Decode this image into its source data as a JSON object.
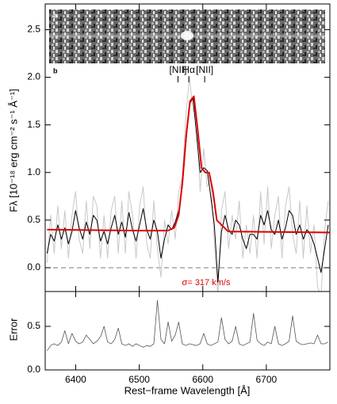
{
  "chart_data": [
    {
      "type": "line",
      "panel_label": "b",
      "image_label": "a",
      "ylabel": "Fλ [10⁻¹⁸ erg cm⁻² s⁻¹ Å⁻¹]",
      "xlim": [
        6352,
        6800
      ],
      "ylim": [
        -0.25,
        2.77
      ],
      "xticks": [
        6400,
        6500,
        6600,
        6700
      ],
      "yticks": [
        {
          "value": 0,
          "label": "0.0"
        },
        {
          "value": 0.5,
          "label": "0.5"
        },
        {
          "value": 1,
          "label": "1.0"
        },
        {
          "value": 1.5,
          "label": "1.5"
        },
        {
          "value": 2,
          "label": "2.0"
        },
        {
          "value": 2.5,
          "label": "2.5"
        }
      ],
      "x": [
        6355,
        6360.6,
        6366.2,
        6371.8,
        6377.4,
        6383,
        6388.6,
        6394.2,
        6399.8,
        6405.4,
        6411,
        6416.6,
        6422.2,
        6427.8,
        6433.4,
        6439,
        6444.6,
        6450.2,
        6455.8,
        6461.4,
        6467,
        6472.6,
        6478.2,
        6483.8,
        6489.4,
        6495,
        6500.6,
        6506.2,
        6511.8,
        6517.4,
        6523,
        6528.6,
        6534.2,
        6539.8,
        6545.4,
        6551,
        6556.6,
        6562.2,
        6567.8,
        6573.4,
        6579,
        6584.6,
        6590.2,
        6595.8,
        6601.4,
        6607,
        6612.6,
        6618.2,
        6623.8,
        6629.4,
        6635,
        6640.6,
        6646.2,
        6651.8,
        6657.4,
        6663,
        6668.6,
        6674.2,
        6679.8,
        6685.4,
        6691,
        6696.6,
        6702.2,
        6707.8,
        6713.4,
        6719,
        6724.6,
        6730.2,
        6735.8,
        6741.4,
        6747,
        6752.6,
        6758.2,
        6763.8,
        6769.4,
        6775,
        6780.6,
        6786.2,
        6791.8,
        6797.4
      ],
      "series": [
        {
          "color": "#c8c8c8",
          "values": [
            0.05,
            0.55,
            0.15,
            0.65,
            0.2,
            0.6,
            0.1,
            0.55,
            0.8,
            0.3,
            0.15,
            0.7,
            0.2,
            0.75,
            0.65,
            0.1,
            0.55,
            0.1,
            0.6,
            0.75,
            0.15,
            0.7,
            0.15,
            0.8,
            0.55,
            0.1,
            0.65,
            0.85,
            0.25,
            0.1,
            0.7,
            0.2,
            -0.1,
            0.5,
            0.25,
            0.6,
            0.3,
            0.8,
            0.95,
            1.6,
            2.0,
            1.65,
            1.6,
            0.8,
            1.25,
            0.85,
            0.95,
            0.25,
            -0.3,
            0.6,
            0.8,
            0.2,
            0.55,
            0.3,
            0.7,
            0.1,
            0.45,
            0.15,
            0.55,
            0.1,
            0.8,
            0.25,
            0.85,
            0.2,
            0.55,
            0.75,
            0.1,
            0.65,
            0.85,
            0.35,
            0.15,
            0.7,
            0.1,
            0.65,
            0.15,
            0.45,
            -0.2,
            -0.3,
            0.4,
            0.7
          ]
        },
        {
          "color": "#000000",
          "values": [
            0.15,
            0.35,
            0.28,
            0.45,
            0.3,
            0.42,
            0.25,
            0.38,
            0.6,
            0.42,
            0.3,
            0.48,
            0.35,
            0.55,
            0.5,
            0.28,
            0.38,
            0.25,
            0.42,
            0.55,
            0.35,
            0.48,
            0.32,
            0.58,
            0.4,
            0.28,
            0.45,
            0.62,
            0.4,
            0.3,
            0.5,
            0.38,
            0.1,
            0.3,
            0.45,
            0.4,
            0.48,
            0.6,
            0.85,
            1.3,
            1.72,
            1.78,
            1.4,
            1.0,
            1.05,
            1.02,
            0.75,
            0.45,
            -0.15,
            0.38,
            0.55,
            0.4,
            0.35,
            0.5,
            0.45,
            0.3,
            0.2,
            0.35,
            0.35,
            0.3,
            0.55,
            0.45,
            0.6,
            0.4,
            0.35,
            0.5,
            0.3,
            0.42,
            0.6,
            0.55,
            0.35,
            0.45,
            0.3,
            0.4,
            0.35,
            0.25,
            0.1,
            -0.05,
            0.2,
            0.45
          ]
        },
        {
          "color": "#e00000",
          "x": [
            6355,
            6500,
            6545,
            6555,
            6562,
            6568,
            6574,
            6580,
            6586,
            6592,
            6598,
            6604,
            6610,
            6616,
            6622,
            6640,
            6800
          ],
          "values": [
            0.4,
            0.39,
            0.39,
            0.42,
            0.55,
            0.9,
            1.4,
            1.75,
            1.8,
            1.45,
            1.05,
            1.0,
            1.0,
            0.8,
            0.5,
            0.38,
            0.37
          ]
        }
      ],
      "annotations": [
        {
          "text": "[NII]",
          "x": 6561
        },
        {
          "text": "Hα",
          "x": 6578
        },
        {
          "text": "[NII]",
          "x": 6603
        }
      ],
      "note": "σ= 317 km/s"
    },
    {
      "type": "line",
      "ylabel": "Error",
      "xlabel": "Rest−frame Wavelength [Å]",
      "xlim": [
        6352,
        6800
      ],
      "ylim": [
        0,
        0.9
      ],
      "xticks": [
        6400,
        6500,
        6600,
        6700
      ],
      "yticks": [
        {
          "value": 0,
          "label": "0.0"
        },
        {
          "value": 0.5,
          "label": "0.5"
        }
      ],
      "x": [
        6355,
        6360.6,
        6366.2,
        6371.8,
        6377.4,
        6383,
        6388.6,
        6394.2,
        6399.8,
        6405.4,
        6411,
        6416.6,
        6422.2,
        6427.8,
        6433.4,
        6439,
        6444.6,
        6450.2,
        6455.8,
        6461.4,
        6467,
        6472.6,
        6478.2,
        6483.8,
        6489.4,
        6495,
        6500.6,
        6506.2,
        6511.8,
        6517.4,
        6523,
        6528.6,
        6534.2,
        6539.8,
        6545.4,
        6551,
        6556.6,
        6562.2,
        6567.8,
        6573.4,
        6579,
        6584.6,
        6590.2,
        6595.8,
        6601.4,
        6607,
        6612.6,
        6618.2,
        6623.8,
        6629.4,
        6635,
        6640.6,
        6646.2,
        6651.8,
        6657.4,
        6663,
        6668.6,
        6674.2,
        6679.8,
        6685.4,
        6691,
        6696.6,
        6702.2,
        6707.8,
        6713.4,
        6719,
        6724.6,
        6730.2,
        6735.8,
        6741.4,
        6747,
        6752.6,
        6758.2,
        6763.8,
        6769.4,
        6775,
        6780.6,
        6786.2,
        6791.8,
        6797.4
      ],
      "series": [
        {
          "color": "#555555",
          "values": [
            0.22,
            0.28,
            0.3,
            0.28,
            0.32,
            0.45,
            0.3,
            0.42,
            0.33,
            0.3,
            0.32,
            0.4,
            0.35,
            0.3,
            0.33,
            0.38,
            0.5,
            0.32,
            0.3,
            0.35,
            0.48,
            0.3,
            0.28,
            0.3,
            0.27,
            0.3,
            0.28,
            0.26,
            0.28,
            0.27,
            0.3,
            0.8,
            0.35,
            0.3,
            0.55,
            0.33,
            0.4,
            0.55,
            0.3,
            0.28,
            0.3,
            0.29,
            0.28,
            0.3,
            0.42,
            0.3,
            0.28,
            0.3,
            0.32,
            0.6,
            0.35,
            0.3,
            0.33,
            0.5,
            0.3,
            0.28,
            0.3,
            0.32,
            0.65,
            0.34,
            0.3,
            0.28,
            0.32,
            0.3,
            0.5,
            0.3,
            0.28,
            0.3,
            0.33,
            0.62,
            0.33,
            0.3,
            0.29,
            0.3,
            0.31,
            0.3,
            0.4,
            0.3,
            0.3,
            0.32
          ]
        }
      ]
    }
  ]
}
